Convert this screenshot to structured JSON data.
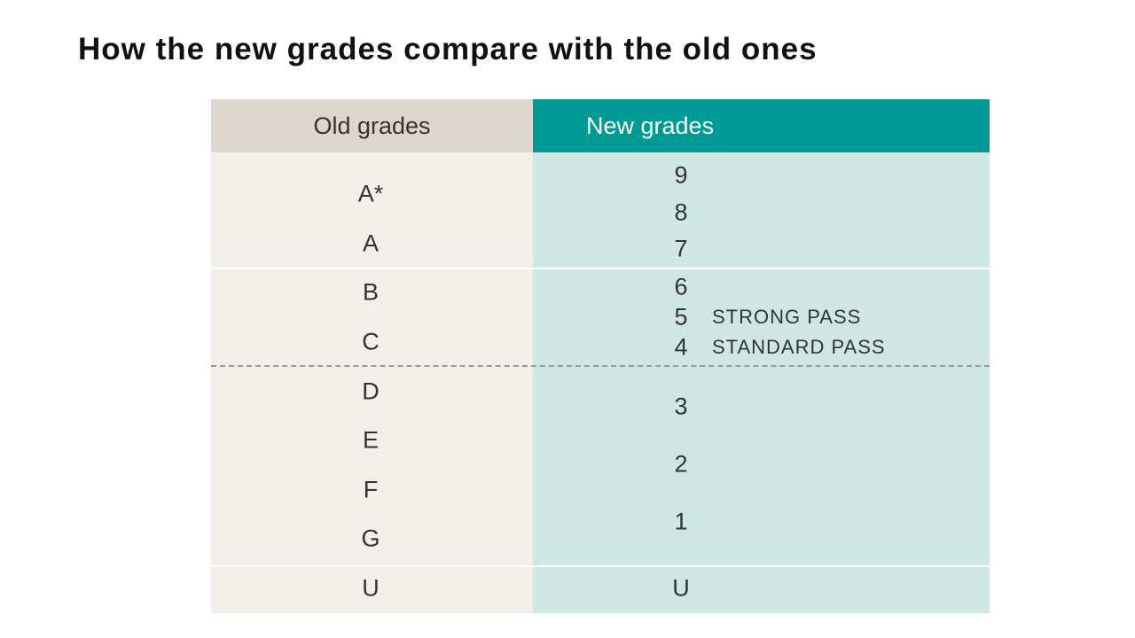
{
  "title": "How the new grades compare with the old ones",
  "table": {
    "old_header": "Old grades",
    "new_header": "New grades",
    "old_grades": [
      "A*",
      "A",
      "B",
      "C",
      "D",
      "E",
      "F",
      "G",
      "U"
    ],
    "new_grades": [
      "9",
      "8",
      "7",
      "6",
      "5",
      "4",
      "3",
      "2",
      "1",
      "U"
    ],
    "strong_pass_label": "STRONG PASS",
    "standard_pass_label": "STANDARD PASS"
  },
  "colors": {
    "old_column_header": "#ddd6cf",
    "old_column_body": "#f2eeea",
    "new_column_header": "#009a96",
    "new_column_body": "#cfe7e3",
    "pass_line": "#9a9a9a"
  }
}
